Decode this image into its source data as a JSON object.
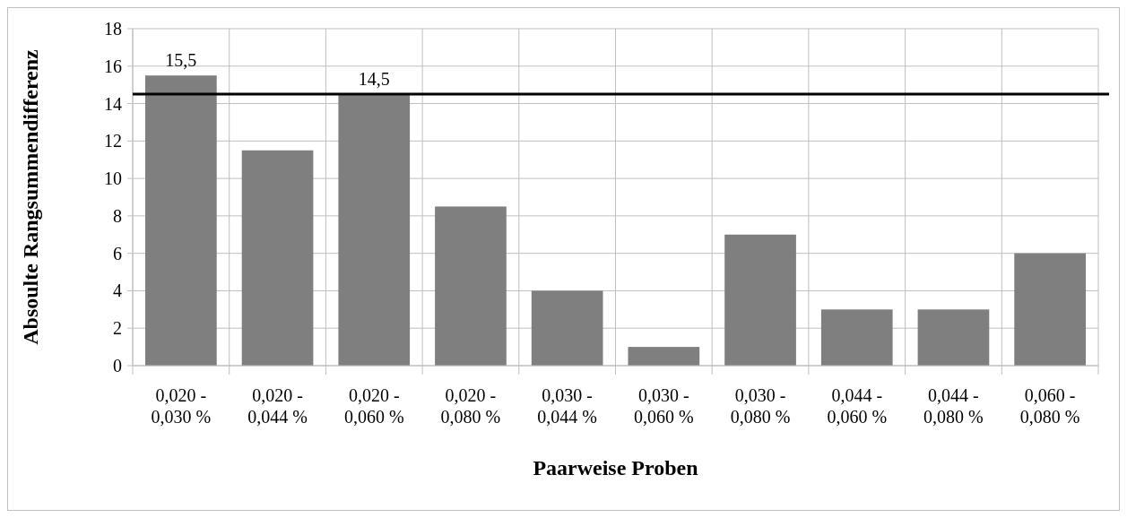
{
  "chart_data": {
    "type": "bar",
    "xlabel": "Paarweise Proben",
    "ylabel": "Absoulte Rangsummendifferenz",
    "categories": [
      "0,020 - 0,030 %",
      "0,020 - 0,044 %",
      "0,020 - 0,060 %",
      "0,020 - 0,080 %",
      "0,030 - 0,044 %",
      "0,030 - 0,060 %",
      "0,030 - 0,080 %",
      "0,044 - 0,060 %",
      "0,044 - 0,080 %",
      "0,060 - 0,080 %"
    ],
    "values": [
      15.5,
      11.5,
      14.5,
      8.5,
      4,
      1,
      7,
      3,
      3,
      6
    ],
    "value_labels": [
      "15,5",
      null,
      "14,5",
      null,
      null,
      null,
      null,
      null,
      null,
      null
    ],
    "color": "#7f7f80",
    "ylim": [
      0,
      18
    ],
    "yticks": [
      0,
      2,
      4,
      6,
      8,
      10,
      12,
      14,
      16,
      18
    ],
    "grid": true,
    "ref_lines": [
      {
        "axis": "y",
        "value": 14.5,
        "color": "#000000"
      }
    ]
  }
}
